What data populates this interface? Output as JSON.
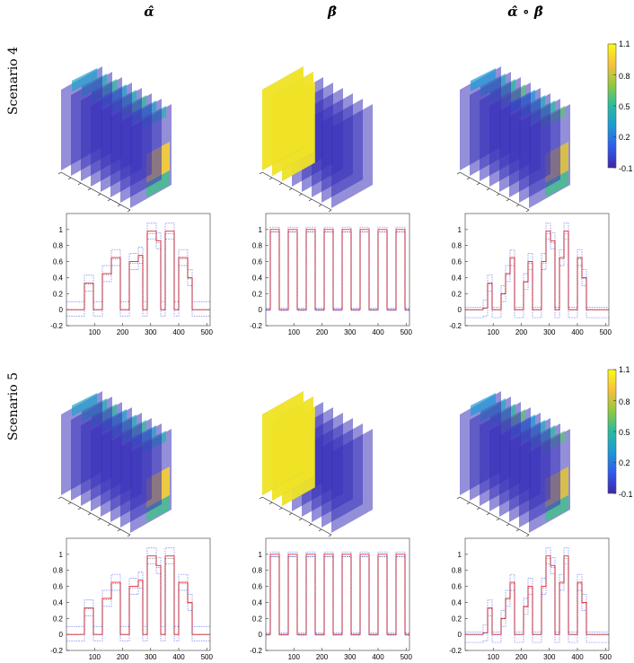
{
  "column_titles": [
    "α̂",
    "β̂",
    "α̂ ∘ β̂"
  ],
  "row_titles": [
    "Scenario 4",
    "Scenario 5"
  ],
  "colorbar": {
    "min": -0.1,
    "max": 1.1,
    "tick_labels": [
      "1.1",
      "0.8",
      "0.5",
      "0.2",
      "-0.1"
    ],
    "tick_values": [
      1.1,
      0.8,
      0.5,
      0.2,
      -0.1
    ],
    "colors": [
      "#3e26a8",
      "#2e5af0",
      "#1c9ad6",
      "#28bba0",
      "#90c940",
      "#f8c03b",
      "#f9fb15"
    ]
  },
  "chart_data": [
    {
      "type": "line",
      "panel": "alpha",
      "scenario": "Scenario 4",
      "xlim": [
        0,
        512
      ],
      "ylim": [
        -0.2,
        1.2
      ],
      "x_ticks": [
        100,
        200,
        300,
        400,
        500
      ],
      "y_ticks": [
        -0.2,
        0,
        0.2,
        0.4,
        0.6,
        0.8,
        1
      ],
      "y_tick_labels": [
        "-0.2",
        "0",
        "0.2",
        "0.4",
        "0.6",
        "0.8",
        "1"
      ],
      "segments": [
        [
          0,
          64,
          0
        ],
        [
          64,
          96,
          0.33
        ],
        [
          96,
          128,
          0
        ],
        [
          128,
          160,
          0.45
        ],
        [
          160,
          192,
          0.65
        ],
        [
          192,
          224,
          0
        ],
        [
          224,
          256,
          0.6
        ],
        [
          256,
          272,
          0.68
        ],
        [
          272,
          288,
          0
        ],
        [
          288,
          320,
          0.98
        ],
        [
          320,
          336,
          0.86
        ],
        [
          336,
          352,
          0
        ],
        [
          352,
          384,
          0.98
        ],
        [
          384,
          400,
          0
        ],
        [
          400,
          432,
          0.65
        ],
        [
          432,
          448,
          0.4
        ],
        [
          448,
          512,
          0
        ]
      ],
      "band": {
        "outside_zero": 0.1,
        "lower_zero": -0.08,
        "scale": 0.1
      }
    },
    {
      "type": "line",
      "panel": "beta",
      "scenario": "Scenario 4",
      "xlim": [
        0,
        512
      ],
      "ylim": [
        -0.2,
        1.2
      ],
      "x_ticks": [
        100,
        200,
        300,
        400,
        500
      ],
      "y_ticks": [
        -0.2,
        0,
        0.2,
        0.4,
        0.6,
        0.8,
        1
      ],
      "y_tick_labels": [
        "-0.2",
        "0",
        "0.2",
        "0.4",
        "0.6",
        "0.8",
        "1"
      ],
      "segments": [
        [
          0,
          16,
          0
        ],
        [
          16,
          48,
          1
        ],
        [
          48,
          80,
          0
        ],
        [
          80,
          112,
          1
        ],
        [
          112,
          144,
          0
        ],
        [
          144,
          176,
          1
        ],
        [
          176,
          208,
          0
        ],
        [
          208,
          240,
          1
        ],
        [
          240,
          272,
          0
        ],
        [
          272,
          304,
          1
        ],
        [
          304,
          336,
          0
        ],
        [
          336,
          368,
          1
        ],
        [
          368,
          400,
          0
        ],
        [
          400,
          432,
          1
        ],
        [
          432,
          464,
          0
        ],
        [
          464,
          496,
          1
        ],
        [
          496,
          512,
          0
        ]
      ],
      "band": {
        "outside_zero": 0.02,
        "lower_zero": -0.01,
        "scale": 0.03
      }
    },
    {
      "type": "line",
      "panel": "alpha_beta",
      "scenario": "Scenario 4",
      "xlim": [
        0,
        512
      ],
      "ylim": [
        -0.2,
        1.2
      ],
      "x_ticks": [
        100,
        200,
        300,
        400,
        500
      ],
      "y_ticks": [
        -0.2,
        0,
        0.2,
        0.4,
        0.6,
        0.8,
        1
      ],
      "y_tick_labels": [
        "-0.2",
        "0",
        "0.2",
        "0.4",
        "0.6",
        "0.8",
        "1"
      ],
      "segments": [
        [
          0,
          64,
          0
        ],
        [
          64,
          80,
          0.02
        ],
        [
          80,
          96,
          0.33
        ],
        [
          96,
          128,
          0
        ],
        [
          128,
          144,
          0.2
        ],
        [
          144,
          160,
          0.45
        ],
        [
          160,
          176,
          0.65
        ],
        [
          176,
          208,
          0
        ],
        [
          208,
          224,
          0.35
        ],
        [
          224,
          240,
          0.6
        ],
        [
          240,
          272,
          0
        ],
        [
          272,
          288,
          0.6
        ],
        [
          288,
          304,
          0.98
        ],
        [
          304,
          320,
          0.86
        ],
        [
          320,
          336,
          0
        ],
        [
          336,
          352,
          0.65
        ],
        [
          352,
          368,
          0.98
        ],
        [
          368,
          400,
          0
        ],
        [
          400,
          416,
          0.65
        ],
        [
          416,
          432,
          0.4
        ],
        [
          432,
          512,
          0
        ]
      ],
      "band": {
        "outside_zero": 0.03,
        "lower_zero": -0.1,
        "scale": 0.1
      }
    },
    {
      "type": "line",
      "panel": "alpha",
      "scenario": "Scenario 5",
      "xlim": [
        0,
        512
      ],
      "ylim": [
        -0.2,
        1.2
      ],
      "x_ticks": [
        100,
        200,
        300,
        400,
        500
      ],
      "y_ticks": [
        -0.2,
        0,
        0.2,
        0.4,
        0.6,
        0.8,
        1
      ],
      "y_tick_labels": [
        "-0.2",
        "0",
        "0.2",
        "0.4",
        "0.6",
        "0.8",
        "1"
      ],
      "segments": [
        [
          0,
          64,
          0
        ],
        [
          64,
          96,
          0.33
        ],
        [
          96,
          128,
          0
        ],
        [
          128,
          160,
          0.45
        ],
        [
          160,
          192,
          0.65
        ],
        [
          192,
          224,
          0
        ],
        [
          224,
          256,
          0.6
        ],
        [
          256,
          272,
          0.68
        ],
        [
          272,
          288,
          0
        ],
        [
          288,
          320,
          0.98
        ],
        [
          320,
          336,
          0.86
        ],
        [
          336,
          352,
          0
        ],
        [
          352,
          384,
          0.98
        ],
        [
          384,
          400,
          0
        ],
        [
          400,
          432,
          0.65
        ],
        [
          432,
          448,
          0.4
        ],
        [
          448,
          512,
          0
        ]
      ],
      "band": {
        "outside_zero": 0.1,
        "lower_zero": -0.08,
        "scale": 0.1
      }
    },
    {
      "type": "line",
      "panel": "beta",
      "scenario": "Scenario 5",
      "xlim": [
        0,
        512
      ],
      "ylim": [
        -0.2,
        1.2
      ],
      "x_ticks": [
        100,
        200,
        300,
        400,
        500
      ],
      "y_ticks": [
        -0.2,
        0,
        0.2,
        0.4,
        0.6,
        0.8,
        1
      ],
      "y_tick_labels": [
        "-0.2",
        "0",
        "0.2",
        "0.4",
        "0.6",
        "0.8",
        "1"
      ],
      "segments": [
        [
          0,
          16,
          0
        ],
        [
          16,
          48,
          1
        ],
        [
          48,
          80,
          0
        ],
        [
          80,
          112,
          1
        ],
        [
          112,
          144,
          0
        ],
        [
          144,
          176,
          1
        ],
        [
          176,
          208,
          0
        ],
        [
          208,
          240,
          1
        ],
        [
          240,
          272,
          0
        ],
        [
          272,
          304,
          1
        ],
        [
          304,
          336,
          0
        ],
        [
          336,
          368,
          1
        ],
        [
          368,
          400,
          0
        ],
        [
          400,
          432,
          1
        ],
        [
          432,
          464,
          0
        ],
        [
          464,
          496,
          1
        ],
        [
          496,
          512,
          0
        ]
      ],
      "band": {
        "outside_zero": 0.02,
        "lower_zero": -0.01,
        "scale": 0.03
      }
    },
    {
      "type": "line",
      "panel": "alpha_beta",
      "scenario": "Scenario 5",
      "xlim": [
        0,
        512
      ],
      "ylim": [
        -0.2,
        1.2
      ],
      "x_ticks": [
        100,
        200,
        300,
        400,
        500
      ],
      "y_ticks": [
        -0.2,
        0,
        0.2,
        0.4,
        0.6,
        0.8,
        1
      ],
      "y_tick_labels": [
        "-0.2",
        "0",
        "0.2",
        "0.4",
        "0.6",
        "0.8",
        "1"
      ],
      "segments": [
        [
          0,
          64,
          0
        ],
        [
          64,
          80,
          0.02
        ],
        [
          80,
          96,
          0.33
        ],
        [
          96,
          128,
          0
        ],
        [
          128,
          144,
          0.2
        ],
        [
          144,
          160,
          0.45
        ],
        [
          160,
          176,
          0.65
        ],
        [
          176,
          208,
          0
        ],
        [
          208,
          224,
          0.35
        ],
        [
          224,
          240,
          0.6
        ],
        [
          240,
          272,
          0
        ],
        [
          272,
          288,
          0.6
        ],
        [
          288,
          304,
          0.98
        ],
        [
          304,
          320,
          0.86
        ],
        [
          320,
          336,
          0
        ],
        [
          336,
          352,
          0.65
        ],
        [
          352,
          368,
          0.98
        ],
        [
          368,
          400,
          0
        ],
        [
          400,
          416,
          0.65
        ],
        [
          416,
          432,
          0.4
        ],
        [
          432,
          512,
          0
        ]
      ],
      "band": {
        "outside_zero": 0.03,
        "lower_zero": -0.1,
        "scale": 0.1
      }
    }
  ]
}
